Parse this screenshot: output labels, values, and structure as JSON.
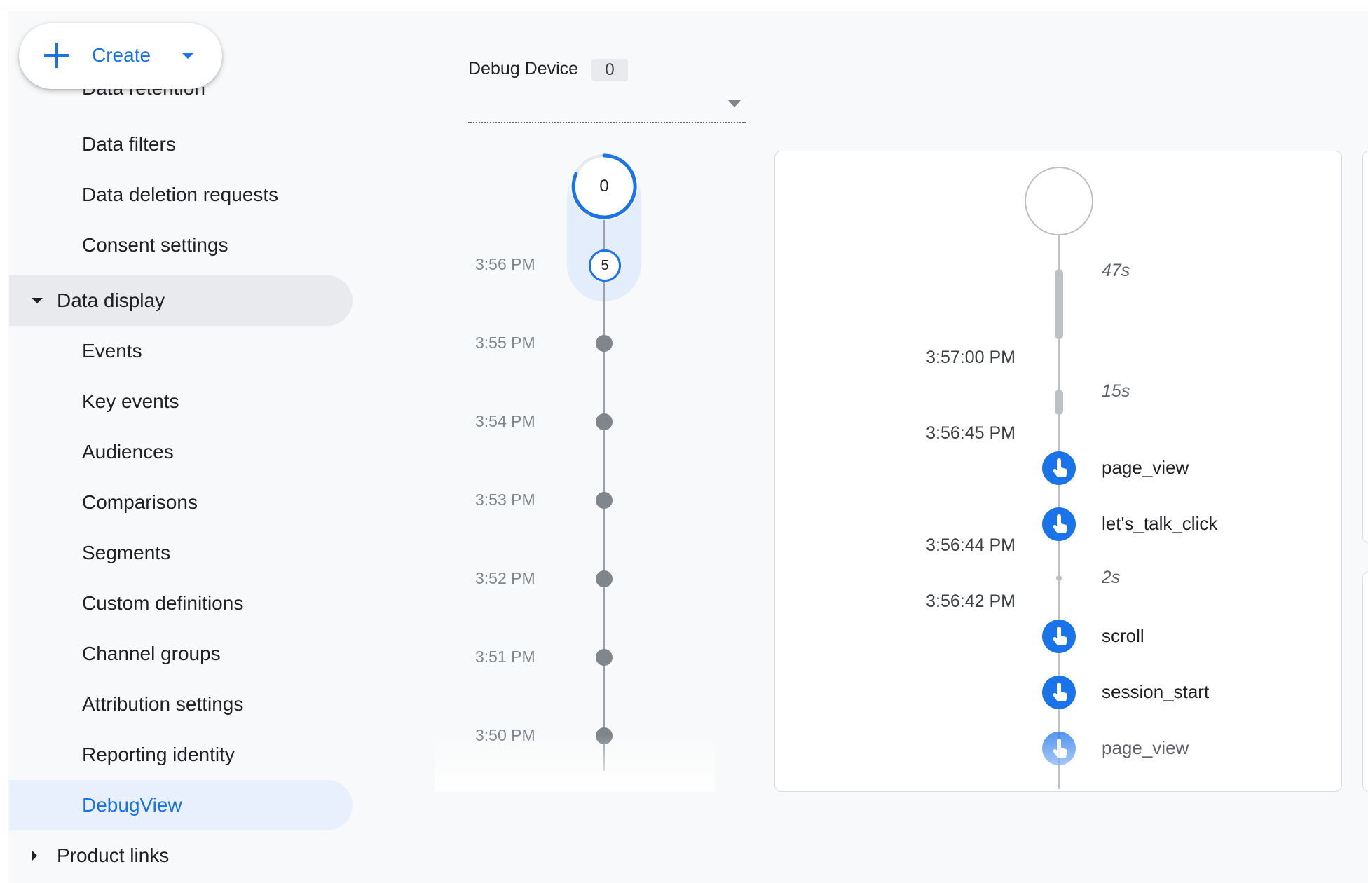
{
  "create": {
    "label": "Create"
  },
  "sidebar": {
    "clipped_item": "Data retention",
    "items": [
      {
        "label": "Data filters"
      },
      {
        "label": "Data deletion requests"
      },
      {
        "label": "Consent settings"
      },
      {
        "label": "Data display"
      },
      {
        "label": "Events"
      },
      {
        "label": "Key events"
      },
      {
        "label": "Audiences"
      },
      {
        "label": "Comparisons"
      },
      {
        "label": "Segments"
      },
      {
        "label": "Custom definitions"
      },
      {
        "label": "Channel groups"
      },
      {
        "label": "Attribution settings"
      },
      {
        "label": "Reporting identity"
      },
      {
        "label": "DebugView"
      },
      {
        "label": "Product links"
      }
    ]
  },
  "debug_device": {
    "label": "Debug Device",
    "count": "0"
  },
  "minutes_stream": {
    "top_count": "0",
    "current_count": "5",
    "times": [
      "3:56 PM",
      "3:55 PM",
      "3:54 PM",
      "3:53 PM",
      "3:52 PM",
      "3:51 PM",
      "3:50 PM"
    ]
  },
  "seconds_stream": {
    "durations": [
      "47s",
      "15s",
      "2s"
    ],
    "times": [
      "3:57:00 PM",
      "3:56:45 PM",
      "3:56:44 PM",
      "3:56:42 PM"
    ],
    "events": [
      "page_view",
      "let's_talk_click",
      "scroll",
      "session_start",
      "page_view"
    ]
  },
  "colors": {
    "accent": "#1a73e8",
    "active_bg": "#e8f0fe",
    "expanded_bg": "#e8eaed"
  }
}
